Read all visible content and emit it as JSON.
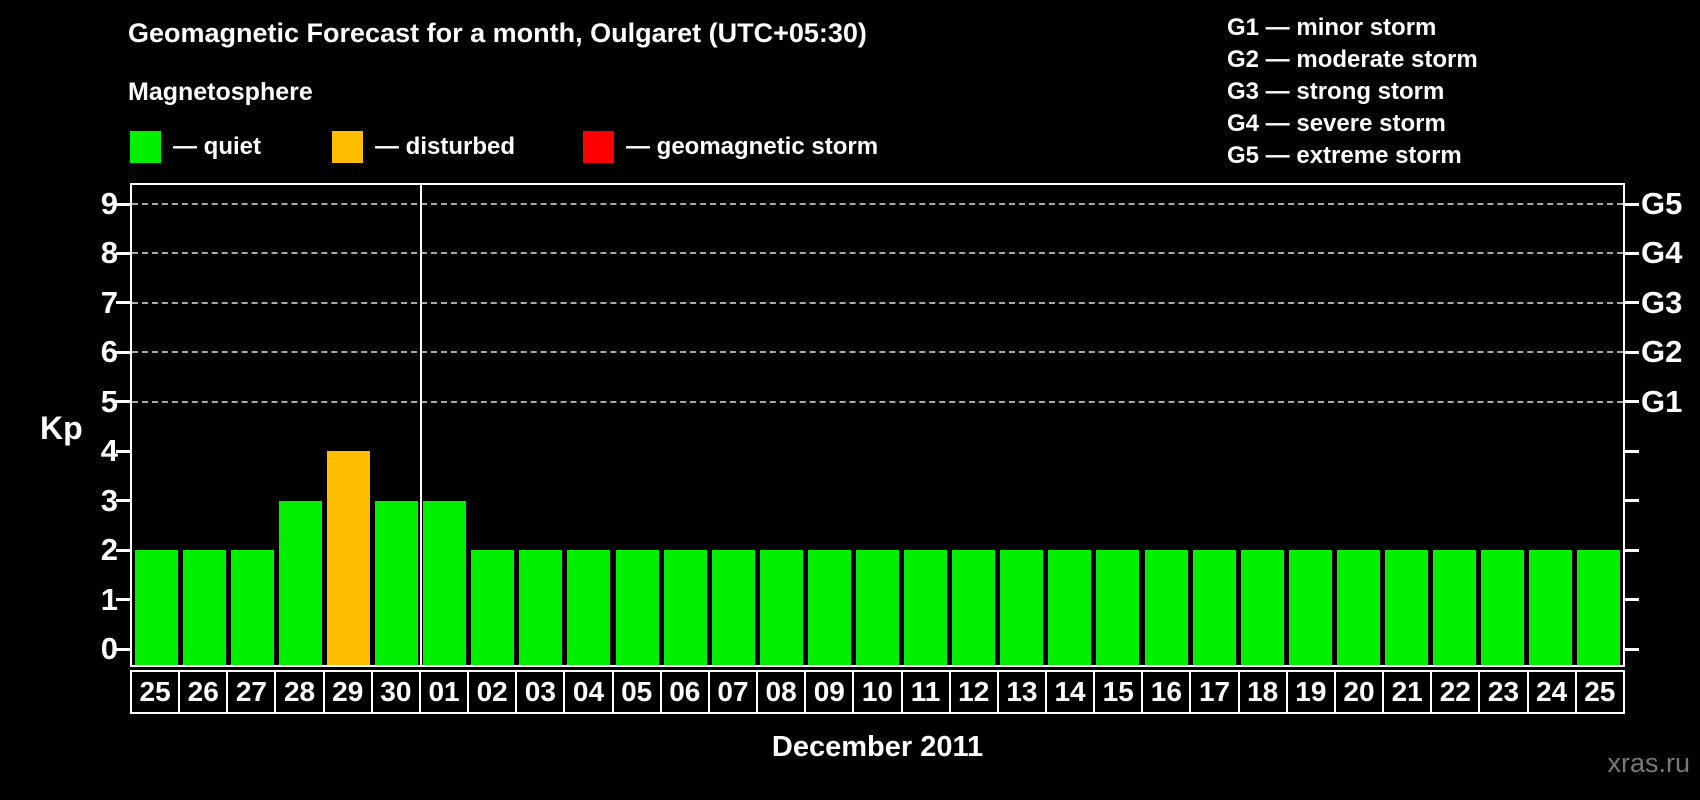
{
  "footer": {
    "watermark": "xras.ru"
  },
  "colors": {
    "background": "#000000",
    "text": "#ffffff",
    "grid": "#a9a9a9",
    "axis": "#ffffff",
    "watermark": "#787878"
  },
  "chart_data": {
    "type": "bar",
    "title": "Geomagnetic Forecast for a month, Oulgaret (UTC+05:30)",
    "legend_title": "Magnetosphere",
    "legend": [
      {
        "state": "quiet",
        "label": "— quiet",
        "color": "#00f000"
      },
      {
        "state": "disturbed",
        "label": "— disturbed",
        "color": "#ffbd00"
      },
      {
        "state": "storm",
        "label": "— geomagnetic storm",
        "color": "#ff0000"
      }
    ],
    "storm_scale": [
      "G1 — minor storm",
      "G2 — moderate storm",
      "G3 — strong storm",
      "G4 — severe storm",
      "G5 — extreme storm"
    ],
    "ylabel": "Kp",
    "xlabel": "December 2011",
    "ylim": [
      0,
      9
    ],
    "yticks": [
      0,
      1,
      2,
      3,
      4,
      5,
      6,
      7,
      8,
      9
    ],
    "gridline_levels": [
      5,
      6,
      7,
      8,
      9
    ],
    "right_axis": [
      {
        "label": "G1",
        "kp": 5
      },
      {
        "label": "G2",
        "kp": 6
      },
      {
        "label": "G3",
        "kp": 7
      },
      {
        "label": "G4",
        "kp": 8
      },
      {
        "label": "G5",
        "kp": 9
      }
    ],
    "categories": [
      "25",
      "26",
      "27",
      "28",
      "29",
      "30",
      "01",
      "02",
      "03",
      "04",
      "05",
      "06",
      "07",
      "08",
      "09",
      "10",
      "11",
      "12",
      "13",
      "14",
      "15",
      "16",
      "17",
      "18",
      "19",
      "20",
      "21",
      "22",
      "23",
      "24",
      "25"
    ],
    "values": [
      2,
      2,
      2,
      3,
      4,
      3,
      3,
      2,
      2,
      2,
      2,
      2,
      2,
      2,
      2,
      2,
      2,
      2,
      2,
      2,
      2,
      2,
      2,
      2,
      2,
      2,
      2,
      2,
      2,
      2,
      2
    ],
    "month_separator_after_index": 5,
    "grid": "dashed horizontal lines at storm levels only",
    "legend_position": "top"
  }
}
